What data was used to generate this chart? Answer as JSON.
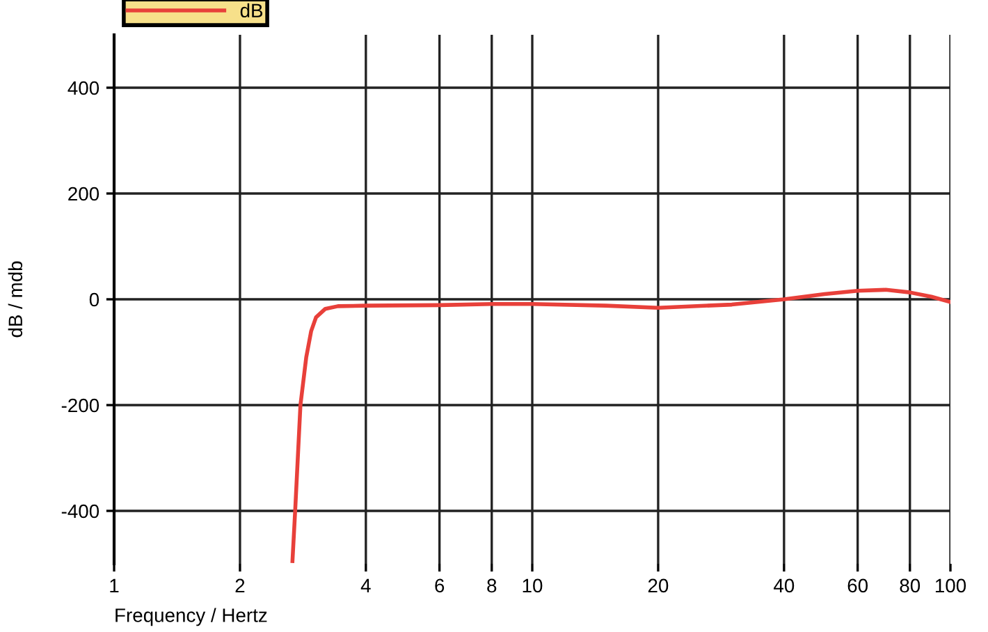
{
  "chart_data": {
    "type": "line",
    "xlabel": "Frequency / Hertz",
    "ylabel": "dB / mdb",
    "x": [
      2.67,
      2.71,
      2.79,
      2.88,
      2.96,
      3.04,
      3.2,
      3.43,
      4,
      6,
      8,
      10,
      15,
      20,
      30,
      40,
      50,
      60,
      70,
      80,
      90,
      100
    ],
    "series": [
      {
        "name": "dB",
        "color": "#e8403a",
        "values": [
          -495,
          -400,
          -200,
          -110,
          -60,
          -34,
          -18,
          -13,
          -12,
          -11,
          -9,
          -9,
          -12,
          -16,
          -10,
          0,
          10,
          16,
          18,
          13,
          5,
          -5
        ]
      }
    ],
    "log": "x",
    "xlim": [
      1,
      100
    ],
    "xticks": [
      1,
      2,
      4,
      6,
      8,
      10,
      20,
      40,
      60,
      80,
      100
    ],
    "ylim": [
      -500,
      500
    ],
    "yticks": [
      -400,
      -200,
      0,
      200,
      400
    ],
    "grid": true,
    "legend": "top left",
    "marker": "none",
    "line_style": "solid"
  }
}
